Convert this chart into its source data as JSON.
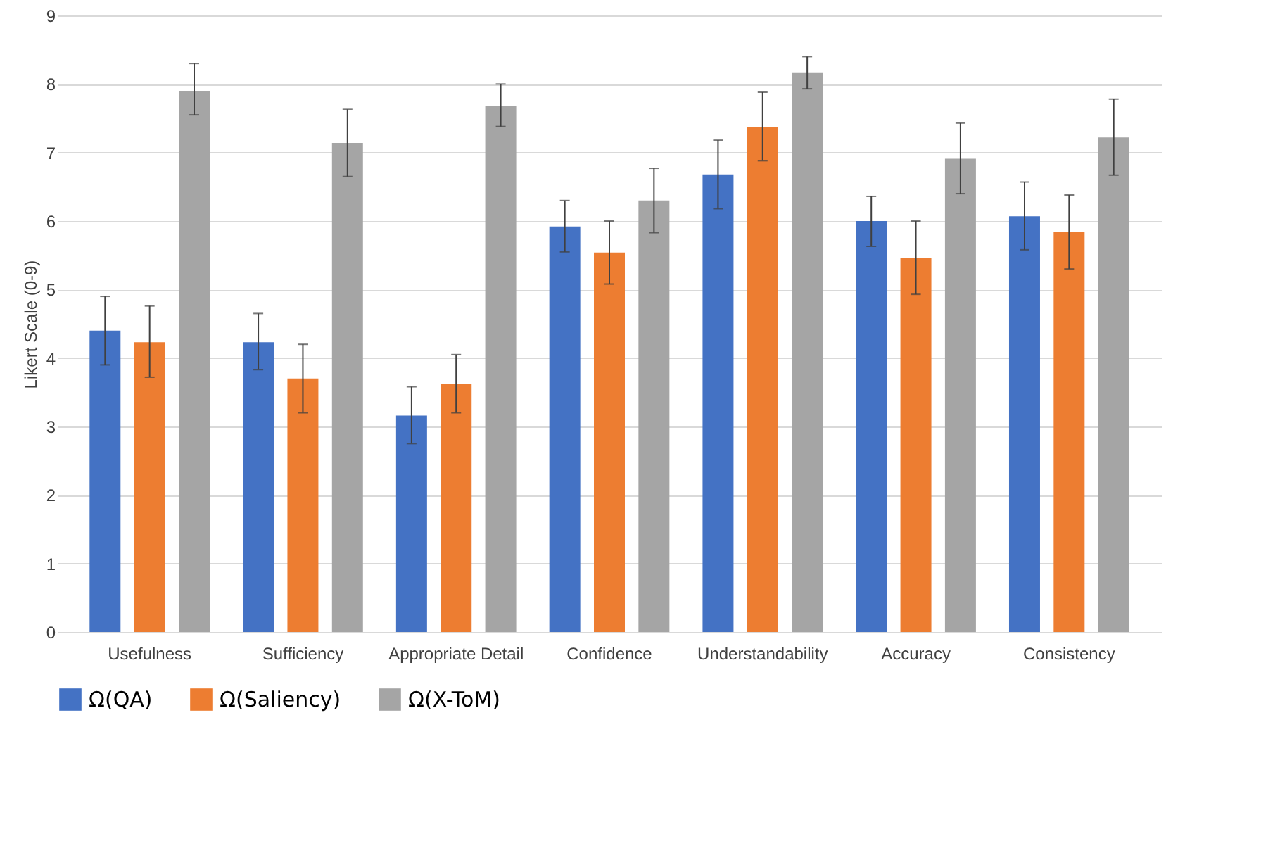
{
  "chart_data": {
    "type": "bar",
    "ylabel": "Likert Scale (0-9)",
    "categories": [
      "Usefulness",
      "Sufficiency",
      "Appropriate Detail",
      "Confidence",
      "Understandability",
      "Accuracy",
      "Consistency"
    ],
    "series": [
      {
        "name": "Ω(QA)",
        "color": "#4472c4",
        "values": [
          4.4,
          4.23,
          3.16,
          5.92,
          6.68,
          6.0,
          6.07
        ],
        "errors": [
          [
            3.9,
            4.9
          ],
          [
            3.83,
            4.65
          ],
          [
            2.75,
            3.58
          ],
          [
            5.55,
            6.3
          ],
          [
            6.18,
            7.18
          ],
          [
            5.63,
            6.36
          ],
          [
            5.58,
            6.57
          ]
        ]
      },
      {
        "name": "Ω(Saliency)",
        "color": "#ed7d31",
        "values": [
          4.23,
          3.7,
          3.62,
          5.54,
          7.37,
          5.46,
          5.84
        ],
        "errors": [
          [
            3.72,
            4.76
          ],
          [
            3.2,
            4.2
          ],
          [
            3.2,
            4.05
          ],
          [
            5.08,
            6.0
          ],
          [
            6.88,
            7.88
          ],
          [
            4.93,
            6.0
          ],
          [
            5.3,
            6.38
          ]
        ]
      },
      {
        "name": "Ω(X-ToM)",
        "color": "#a5a5a5",
        "values": [
          7.9,
          7.14,
          7.68,
          6.3,
          8.16,
          6.91,
          7.22
        ],
        "errors": [
          [
            7.55,
            8.3
          ],
          [
            6.65,
            7.63
          ],
          [
            7.38,
            8.0
          ],
          [
            5.83,
            6.77
          ],
          [
            7.93,
            8.4
          ],
          [
            6.4,
            7.43
          ],
          [
            6.67,
            7.78
          ]
        ]
      }
    ],
    "ylim": [
      0,
      9
    ],
    "yticks": [
      0,
      1,
      2,
      3,
      4,
      5,
      6,
      7,
      8,
      9
    ],
    "grid": "y",
    "legend": "bottom"
  }
}
